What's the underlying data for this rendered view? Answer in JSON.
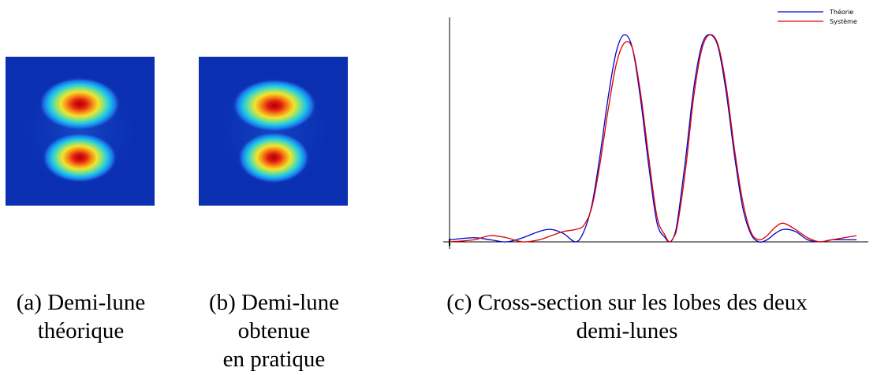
{
  "captions": {
    "a": [
      "(a) Demi-lune",
      "théorique"
    ],
    "b": [
      "(b) Demi-lune",
      "obtenue",
      "en pratique"
    ],
    "c": [
      "(c) Cross-section sur les lobes des deux",
      "demi-lunes"
    ]
  },
  "heatmap_colors": {
    "background": "#0a2fb0",
    "lobe_ramp": [
      "#0a2fb0",
      "#1e6fe8",
      "#19c6ea",
      "#7fe08a",
      "#f2e42a",
      "#f48a17",
      "#e41a0f",
      "#a8000a"
    ]
  },
  "chart_data": {
    "type": "line",
    "title": "",
    "xlabel": "",
    "ylabel": "",
    "xlim": [
      0,
      100
    ],
    "ylim": [
      0,
      1.05
    ],
    "grid": false,
    "legend": "top-right",
    "series": [
      {
        "name": "Théorie",
        "color": "#0000cc",
        "x": [
          0,
          6,
          10,
          14,
          18,
          22,
          25,
          28,
          31,
          33,
          35,
          37,
          39,
          41,
          43,
          45,
          47,
          49,
          51,
          53,
          54,
          55,
          56,
          58,
          60,
          62,
          64,
          66,
          68,
          70,
          72,
          74,
          76,
          78,
          80,
          82,
          85,
          88,
          91,
          94,
          97,
          100
        ],
        "y": [
          0.01,
          0.02,
          0.01,
          0.0,
          0.02,
          0.05,
          0.06,
          0.04,
          0.0,
          0.05,
          0.18,
          0.42,
          0.7,
          0.92,
          1.0,
          0.93,
          0.68,
          0.36,
          0.09,
          0.02,
          0.0,
          0.02,
          0.1,
          0.4,
          0.74,
          0.95,
          1.0,
          0.94,
          0.72,
          0.42,
          0.17,
          0.04,
          0.0,
          0.01,
          0.04,
          0.06,
          0.05,
          0.01,
          0.0,
          0.01,
          0.01,
          0.01
        ]
      },
      {
        "name": "Système",
        "color": "#dd0000",
        "x": [
          0,
          6,
          10,
          14,
          18,
          22,
          25,
          28,
          31,
          33,
          35,
          37,
          39,
          41,
          43,
          45,
          47,
          49,
          51,
          53,
          54,
          55,
          56,
          58,
          60,
          62,
          64,
          66,
          68,
          70,
          72,
          74,
          76,
          78,
          80,
          82,
          85,
          88,
          91,
          94,
          97,
          100
        ],
        "y": [
          0.0,
          0.01,
          0.03,
          0.02,
          0.0,
          0.01,
          0.03,
          0.05,
          0.06,
          0.08,
          0.17,
          0.38,
          0.64,
          0.86,
          0.96,
          0.93,
          0.71,
          0.4,
          0.12,
          0.03,
          0.0,
          0.02,
          0.08,
          0.35,
          0.7,
          0.93,
          1.0,
          0.95,
          0.75,
          0.45,
          0.2,
          0.05,
          0.01,
          0.03,
          0.07,
          0.09,
          0.06,
          0.02,
          0.0,
          0.01,
          0.02,
          0.03
        ]
      }
    ]
  }
}
